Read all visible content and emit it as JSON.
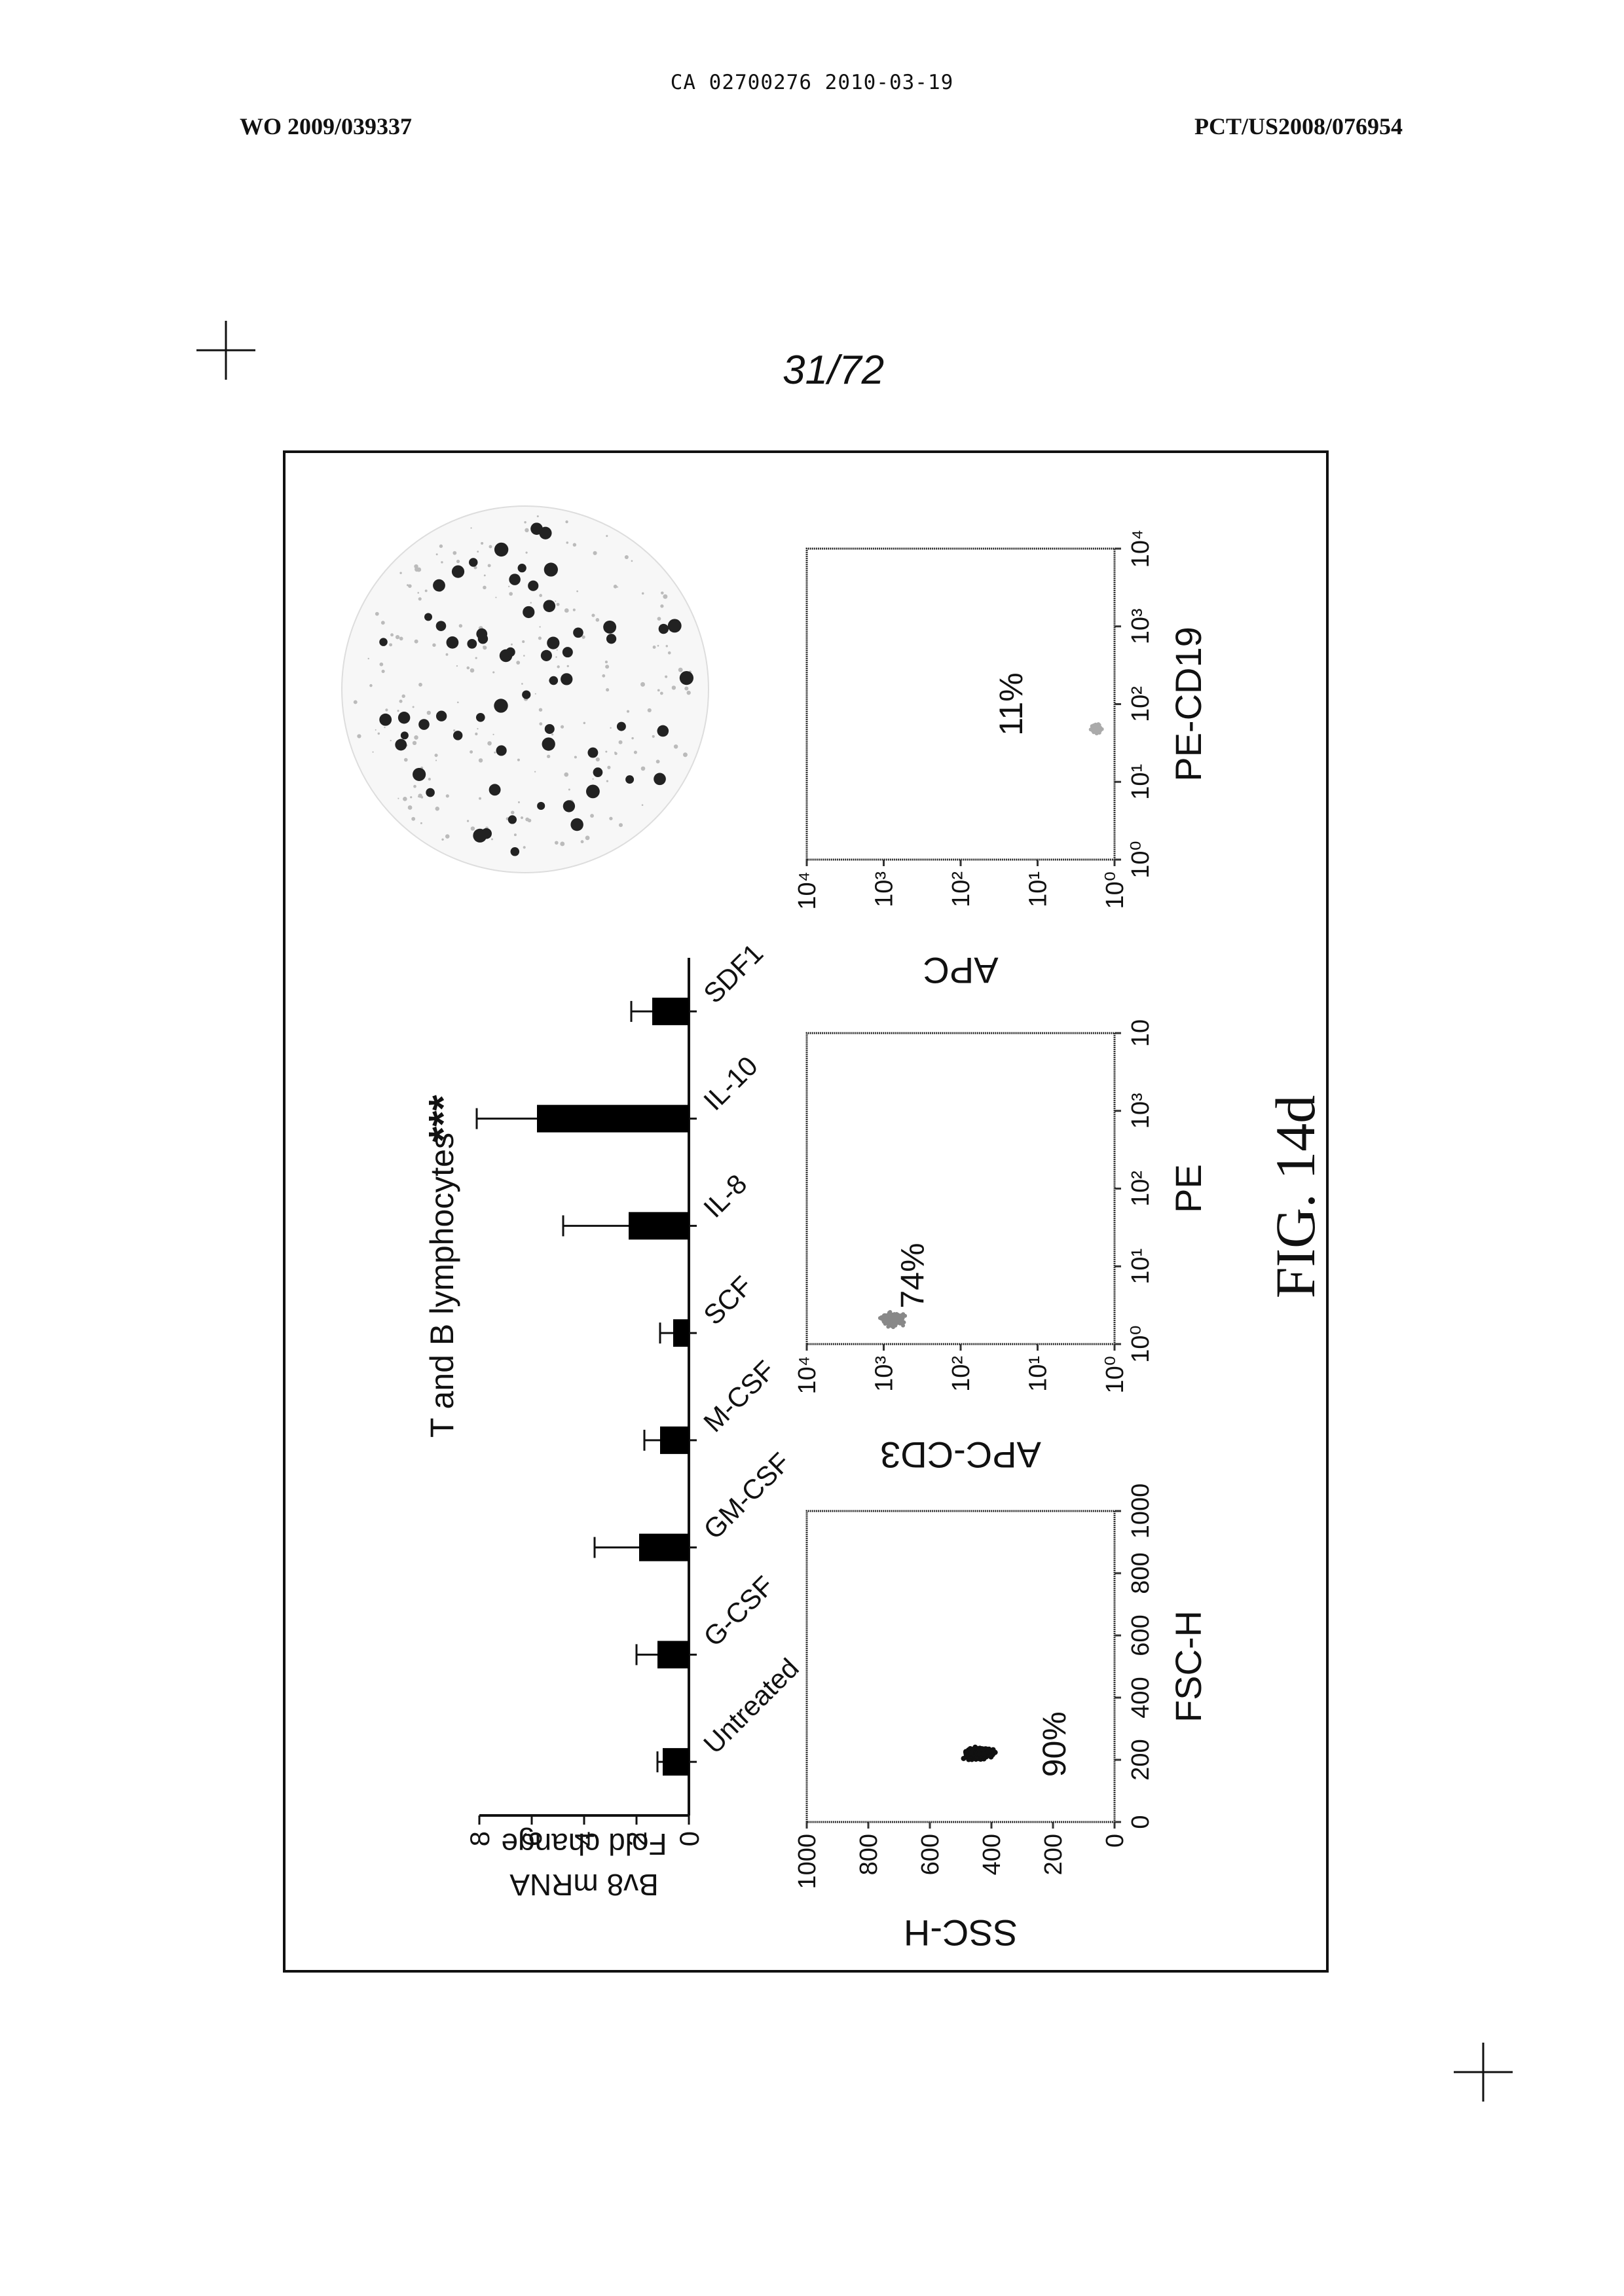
{
  "header": {
    "ca_number": "CA 02700276 2010-03-19",
    "publication_number": "WO 2009/039337",
    "pct_number": "PCT/US2008/076954",
    "page_number": "31/72"
  },
  "figure": {
    "caption": "FIG. 14d",
    "panel_title": "T and B lymphocytes",
    "significance_mark": "***",
    "colors": {
      "ink": "#111111",
      "bars": "#000000"
    }
  },
  "chart_data": [
    {
      "type": "bar",
      "title": "T and B lymphocytes",
      "ylabel": "Bv8 mRNA Fold change",
      "ylim": [
        0,
        8
      ],
      "yticks": [
        "0",
        "2",
        "4",
        "6",
        "8"
      ],
      "categories": [
        "Untreated",
        "G-CSF",
        "GM-CSF",
        "M-CSF",
        "SCF",
        "IL-8",
        "IL-10",
        "SDF1"
      ],
      "values": [
        1.0,
        1.2,
        1.9,
        1.1,
        0.6,
        2.3,
        5.8,
        1.4
      ],
      "errors": [
        0.2,
        0.8,
        1.7,
        0.6,
        0.5,
        2.5,
        2.3,
        0.8
      ],
      "annotations": [
        {
          "category": "IL-10",
          "text": "***"
        }
      ]
    },
    {
      "type": "scatter",
      "xlabel": "FSC-H",
      "ylabel": "SSC-H",
      "xlim": [
        0,
        1000
      ],
      "ylim": [
        0,
        1000
      ],
      "xticks": [
        "0",
        "200",
        "400",
        "600",
        "800",
        "1000"
      ],
      "yticks": [
        "0",
        "200",
        "400",
        "600",
        "800",
        "1000"
      ],
      "gate_percent": "90%"
    },
    {
      "type": "scatter",
      "xlabel": "PE",
      "ylabel": "APC-CD3",
      "scale": "log",
      "xticks": [
        "10⁰",
        "10¹",
        "10²",
        "10³",
        "10"
      ],
      "yticks": [
        "10⁰",
        "10¹",
        "10²",
        "10³",
        "10⁴"
      ],
      "gate_percent": "74%"
    },
    {
      "type": "scatter",
      "xlabel": "PE-CD19",
      "ylabel": "APC",
      "scale": "log",
      "xticks": [
        "10⁰",
        "10¹",
        "10²",
        "10³",
        "10⁴"
      ],
      "yticks": [
        "10⁰",
        "10¹",
        "10²",
        "10³",
        "10⁴"
      ],
      "gate_percent": "11%"
    }
  ]
}
